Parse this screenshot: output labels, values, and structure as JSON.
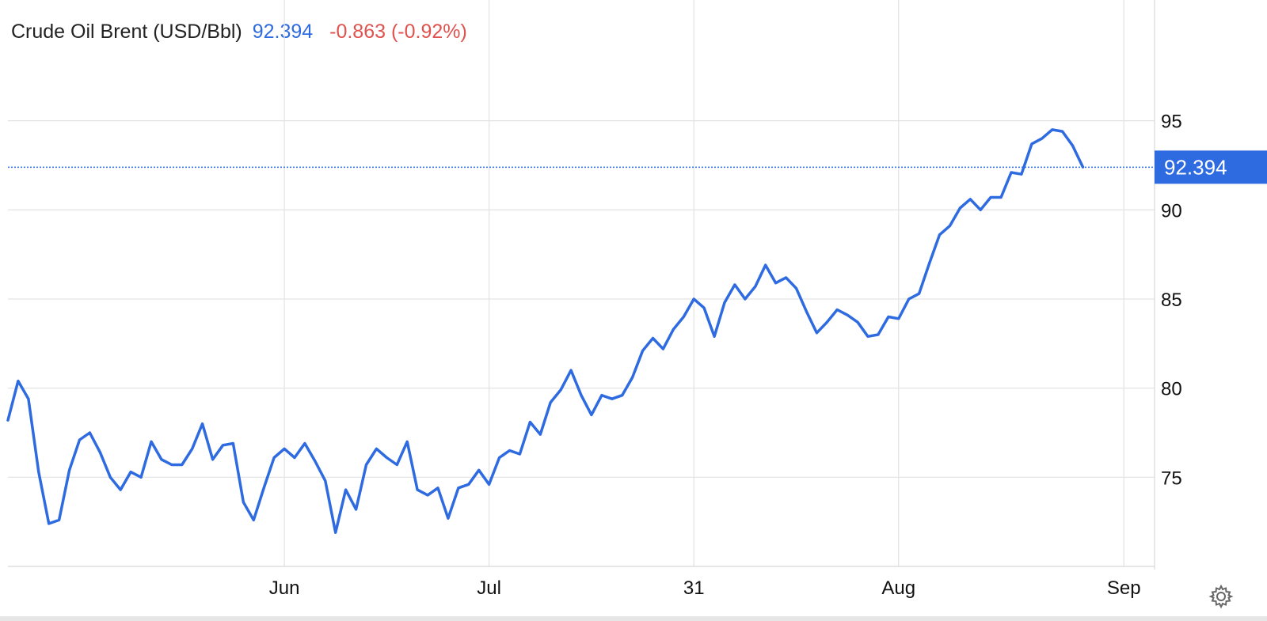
{
  "header": {
    "title": "Crude Oil Brent (USD/Bbl)",
    "price": "92.394",
    "change": "-0.863 (-0.92%)"
  },
  "colors": {
    "line": "#2f6be0",
    "negative": "#e0524d",
    "grid": "#e3e3e3",
    "label_bg": "#2f6be0"
  },
  "icons": {
    "settings": "gear-icon"
  },
  "chart_data": {
    "type": "line",
    "title": "Crude Oil Brent (USD/Bbl)",
    "ylim": [
      70,
      98
    ],
    "yticks": [
      75,
      80,
      85,
      90,
      95
    ],
    "ytick_labels": [
      "75",
      "80",
      "85",
      "90",
      "95"
    ],
    "xticks": [
      {
        "label": "Jun",
        "x": 27
      },
      {
        "label": "Jul",
        "x": 47
      },
      {
        "label": "31",
        "x": 67
      },
      {
        "label": "Aug",
        "x": 87
      },
      {
        "label": "Sep",
        "x": 109
      }
    ],
    "last_value_label": "92.394",
    "last_value": 92.394,
    "grid": true,
    "series": [
      {
        "x": [
          0,
          1,
          2,
          3,
          4,
          5,
          6,
          7,
          8,
          9,
          10,
          11,
          12,
          13,
          14,
          15,
          16,
          17,
          18,
          19,
          20,
          21,
          22,
          23,
          24,
          25,
          26,
          27,
          28,
          29,
          30,
          31,
          32,
          33,
          34,
          35,
          36,
          37,
          38,
          39,
          40,
          41,
          42,
          43,
          44,
          45,
          46,
          47,
          48,
          49,
          50,
          51,
          52,
          53,
          54,
          55,
          56,
          57,
          58,
          59,
          60,
          61,
          62,
          63,
          64,
          65,
          66,
          67,
          68,
          69,
          70,
          71,
          72,
          73,
          74,
          75,
          76,
          77,
          78,
          79,
          80,
          81,
          82,
          83,
          84,
          85,
          86,
          87,
          88,
          89,
          90,
          91,
          92,
          93,
          94,
          95,
          96,
          97,
          98,
          99,
          100,
          101,
          102,
          103,
          104,
          105
        ],
        "values": [
          78.2,
          80.4,
          79.4,
          75.3,
          72.4,
          72.6,
          75.4,
          77.1,
          77.5,
          76.4,
          75.0,
          74.3,
          75.3,
          75.0,
          77.0,
          76.0,
          75.7,
          75.7,
          76.6,
          78.0,
          76.0,
          76.8,
          76.9,
          73.6,
          72.6,
          74.4,
          76.1,
          76.6,
          76.1,
          76.9,
          75.9,
          74.8,
          71.9,
          74.3,
          73.2,
          75.7,
          76.6,
          76.1,
          75.7,
          77.0,
          74.3,
          74.0,
          74.4,
          72.7,
          74.4,
          74.6,
          75.4,
          74.6,
          76.1,
          76.5,
          76.3,
          78.1,
          77.4,
          79.2,
          79.9,
          81.0,
          79.6,
          78.5,
          79.6,
          79.4,
          79.6,
          80.6,
          82.1,
          82.8,
          82.2,
          83.3,
          84.0,
          85.0,
          84.5,
          82.9,
          84.8,
          85.8,
          85.0,
          85.7,
          86.9,
          85.9,
          86.2,
          85.6,
          84.3,
          83.1,
          83.7,
          84.4,
          84.1,
          83.7,
          82.9,
          83.0,
          84.0,
          83.9,
          85.0,
          85.3,
          87.0,
          88.6,
          89.1,
          90.1,
          90.6,
          90.0,
          90.7,
          90.7,
          92.1,
          92.0,
          93.7,
          94.0,
          94.5,
          94.4,
          93.6,
          92.4
        ]
      }
    ]
  }
}
